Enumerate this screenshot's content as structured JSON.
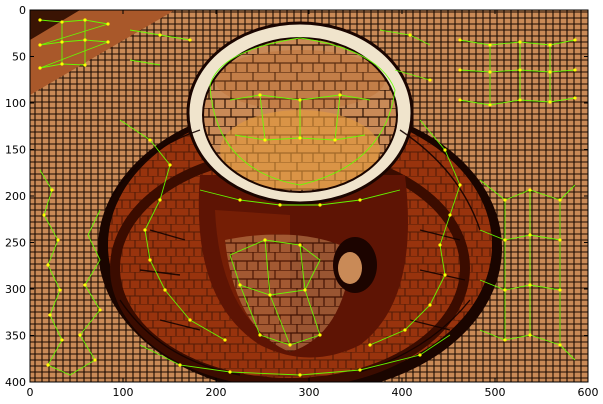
{
  "figure": {
    "x_ticks": [
      "0",
      "100",
      "200",
      "300",
      "400",
      "500",
      "600"
    ],
    "y_ticks": [
      "0",
      "50",
      "100",
      "150",
      "200",
      "250",
      "300",
      "350",
      "400"
    ],
    "x_range": [
      0,
      600
    ],
    "y_range": [
      400,
      0
    ],
    "colors": {
      "background_dark": "#2a0a00",
      "brown_light": "#d39a6a",
      "brown_mid": "#b8662e",
      "rust": "#a33a10",
      "dark_red": "#6e1a04",
      "cream": "#f0e4cc",
      "orange": "#e39a3e",
      "graph_edge": "#66ff00",
      "graph_node": "#ffff00",
      "segment_border": "#000000"
    },
    "image_description_tags": [
      "superpixel-segmentation",
      "coffee-cup",
      "region-adjacency-graph"
    ]
  }
}
